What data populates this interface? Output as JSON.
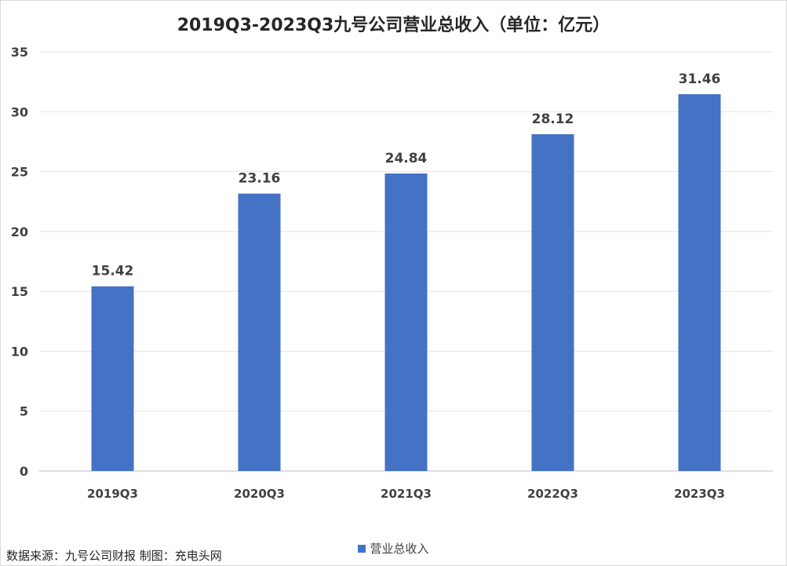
{
  "chart_data": {
    "type": "bar",
    "title": "2019Q3-2023Q3九号公司营业总收入（单位：亿元）",
    "categories": [
      "2019Q3",
      "2020Q3",
      "2021Q3",
      "2022Q3",
      "2023Q3"
    ],
    "series": [
      {
        "name": "营业总收入",
        "values": [
          15.42,
          23.16,
          24.84,
          28.12,
          31.46
        ],
        "color": "#4472c4"
      }
    ],
    "data_labels": [
      "15.42",
      "23.16",
      "24.84",
      "28.12",
      "31.46"
    ],
    "y_ticks": [
      0,
      5,
      10,
      15,
      20,
      25,
      30,
      35
    ],
    "ylim": [
      0,
      35
    ],
    "grid": true,
    "legend_position": "bottom"
  },
  "footer": {
    "source": "数据来源：九号公司财报  制图：充电头网"
  }
}
